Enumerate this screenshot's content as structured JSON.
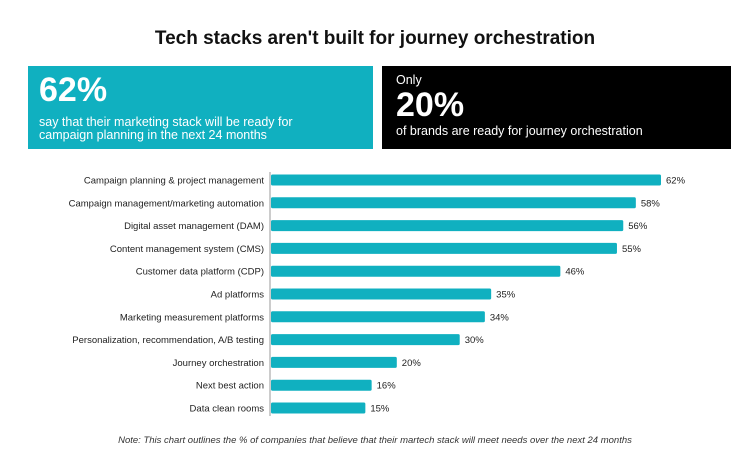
{
  "title": "Tech stacks aren't built for journey orchestration",
  "callout_left": {
    "value": "62%",
    "text": "say that their marketing stack will be ready for campaign planning in the next 24 months",
    "color": "#10b0c0"
  },
  "callout_right": {
    "prefix": "Only",
    "value": "20%",
    "text": "of brands are ready for journey orchestration",
    "color": "#000000"
  },
  "chart_data": {
    "type": "bar",
    "orientation": "horizontal",
    "categories": [
      "Campaign planning & project management",
      "Campaign management/marketing automation",
      "Digital asset management (DAM)",
      "Content management system (CMS)",
      "Customer data platform (CDP)",
      "Ad platforms",
      "Marketing measurement platforms",
      "Personalization, recommendation, A/B testing",
      "Journey orchestration",
      "Next best action",
      "Data clean rooms"
    ],
    "values": [
      62,
      58,
      56,
      55,
      46,
      35,
      34,
      30,
      20,
      16,
      15
    ],
    "value_suffix": "%",
    "bar_color": "#10b0c0",
    "grid": false
  },
  "note": "Note: This chart outlines the % of companies that believe that their martech stack will meet needs over the next 24 months"
}
